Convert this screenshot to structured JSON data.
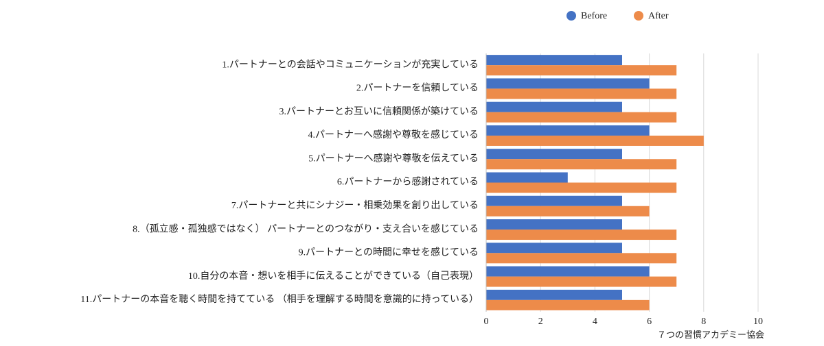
{
  "chart_data": {
    "type": "bar",
    "orientation": "horizontal",
    "categories": [
      "1.パートナーとの会話やコミュニケーションが充実している",
      "2.パートナーを信頼している",
      "3.パートナーとお互いに信頼関係が築けている",
      "4.パートナーへ感謝や尊敬を感じている",
      "5.パートナーへ感謝や尊敬を伝えている",
      "6.パートナーから感謝されている",
      "7.パートナーと共にシナジー・相乗効果を創り出している",
      "8.（孤立感・孤独感ではなく） パートナーとのつながり・支え合いを感じている",
      "9.パートナーとの時間に幸せを感じている",
      "10.自分の本音・想いを相手に伝えることができている（自己表現）",
      "11.パートナーの本音を聴く時間を持てている （相手を理解する時間を意識的に持っている）"
    ],
    "series": [
      {
        "name": "Before",
        "color": "#4472c4",
        "values": [
          5,
          6,
          5,
          6,
          5,
          3,
          5,
          5,
          5,
          6,
          5
        ]
      },
      {
        "name": "After",
        "color": "#ed8b4a",
        "values": [
          7,
          7,
          7,
          8,
          7,
          7,
          6,
          7,
          7,
          7,
          6
        ]
      }
    ],
    "xlim": [
      0,
      10
    ],
    "xticks": [
      0,
      2,
      4,
      6,
      8,
      10
    ],
    "grid": true,
    "legend": "top",
    "annotation": "７つの習慣アカデミー協会"
  }
}
